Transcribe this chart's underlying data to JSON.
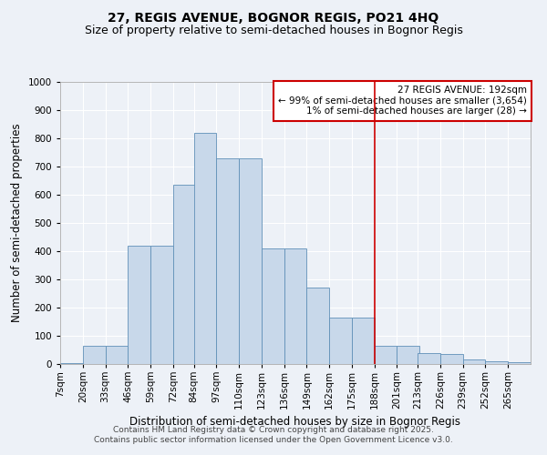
{
  "title1": "27, REGIS AVENUE, BOGNOR REGIS, PO21 4HQ",
  "title2": "Size of property relative to semi-detached houses in Bognor Regis",
  "xlabel": "Distribution of semi-detached houses by size in Bognor Regis",
  "ylabel": "Number of semi-detached properties",
  "bar_color": "#c8d8ea",
  "bar_edge_color": "#6090b8",
  "background_color": "#edf1f7",
  "grid_color": "#ffffff",
  "bins": [
    7,
    20,
    33,
    46,
    59,
    72,
    84,
    97,
    110,
    123,
    136,
    149,
    162,
    175,
    188,
    201,
    213,
    226,
    239,
    252,
    265
  ],
  "counts": [
    3,
    65,
    65,
    420,
    420,
    635,
    820,
    730,
    730,
    410,
    410,
    270,
    165,
    165,
    65,
    65,
    40,
    35,
    15,
    10,
    5
  ],
  "bin_labels": [
    "7sqm",
    "20sqm",
    "33sqm",
    "46sqm",
    "59sqm",
    "72sqm",
    "84sqm",
    "97sqm",
    "110sqm",
    "123sqm",
    "136sqm",
    "149sqm",
    "162sqm",
    "175sqm",
    "188sqm",
    "201sqm",
    "213sqm",
    "226sqm",
    "239sqm",
    "252sqm",
    "265sqm"
  ],
  "vline_x": 188,
  "vline_color": "#cc0000",
  "ylim": [
    0,
    1000
  ],
  "yticks": [
    0,
    100,
    200,
    300,
    400,
    500,
    600,
    700,
    800,
    900,
    1000
  ],
  "annotation_title": "27 REGIS AVENUE: 192sqm",
  "annotation_line1": "← 99% of semi-detached houses are smaller (3,654)",
  "annotation_line2": "1% of semi-detached houses are larger (28) →",
  "annotation_box_color": "#ffffff",
  "annotation_border_color": "#cc0000",
  "footer1": "Contains HM Land Registry data © Crown copyright and database right 2025.",
  "footer2": "Contains public sector information licensed under the Open Government Licence v3.0.",
  "title_fontsize": 10,
  "subtitle_fontsize": 9,
  "axis_label_fontsize": 8.5,
  "tick_fontsize": 7.5,
  "annotation_fontsize": 7.5,
  "footer_fontsize": 6.5
}
